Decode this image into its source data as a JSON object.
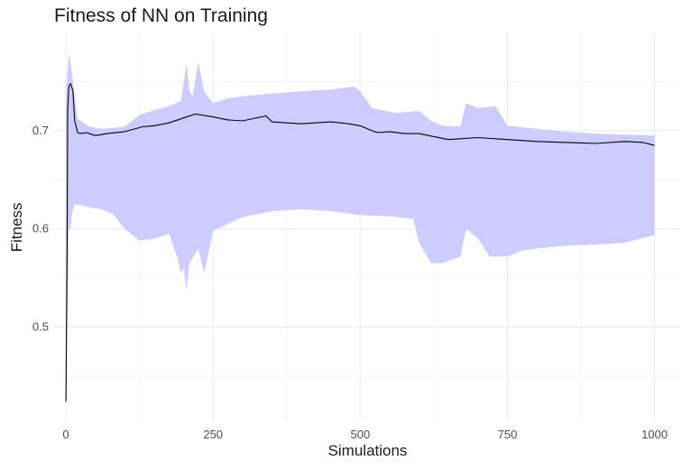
{
  "chart_data": {
    "type": "line",
    "title": "Fitness of NN on Training",
    "xlabel": "Simulations",
    "ylabel": "Fitness",
    "xlim": [
      -20,
      1045
    ],
    "ylim": [
      0.405,
      0.8
    ],
    "x_ticks": [
      0,
      250,
      500,
      750,
      1000
    ],
    "y_ticks": [
      0.5,
      0.6,
      0.7
    ],
    "grid": true,
    "legend": "none",
    "colors": {
      "mean_line": "#000000",
      "band": "#ccccff",
      "grid": "#ebebeb"
    },
    "series": [
      {
        "role": "mean",
        "x": [
          0,
          2,
          3,
          5,
          8,
          12,
          15,
          20,
          25,
          35,
          50,
          70,
          100,
          130,
          150,
          175,
          200,
          220,
          250,
          275,
          300,
          340,
          350,
          375,
          400,
          450,
          480,
          500,
          520,
          530,
          550,
          575,
          600,
          625,
          650,
          700,
          750,
          800,
          850,
          900,
          950,
          980,
          1000
        ],
        "y": [
          0.424,
          0.58,
          0.72,
          0.745,
          0.748,
          0.74,
          0.71,
          0.698,
          0.697,
          0.698,
          0.695,
          0.697,
          0.699,
          0.704,
          0.705,
          0.708,
          0.713,
          0.717,
          0.714,
          0.711,
          0.71,
          0.715,
          0.709,
          0.708,
          0.707,
          0.709,
          0.707,
          0.705,
          0.7,
          0.698,
          0.699,
          0.697,
          0.697,
          0.694,
          0.691,
          0.693,
          0.691,
          0.689,
          0.688,
          0.687,
          0.689,
          0.688,
          0.685
        ]
      },
      {
        "role": "band-upper",
        "x": [
          0,
          5,
          10,
          15,
          20,
          40,
          60,
          80,
          100,
          125,
          150,
          175,
          195,
          205,
          210,
          215,
          225,
          235,
          250,
          275,
          300,
          350,
          400,
          450,
          490,
          500,
          520,
          560,
          600,
          620,
          640,
          670,
          680,
          700,
          730,
          750,
          800,
          850,
          900,
          950,
          1000
        ],
        "y": [
          0.74,
          0.78,
          0.76,
          0.735,
          0.712,
          0.704,
          0.702,
          0.703,
          0.704,
          0.716,
          0.721,
          0.725,
          0.73,
          0.768,
          0.74,
          0.735,
          0.77,
          0.74,
          0.728,
          0.733,
          0.735,
          0.738,
          0.74,
          0.742,
          0.745,
          0.74,
          0.723,
          0.718,
          0.72,
          0.71,
          0.705,
          0.704,
          0.728,
          0.723,
          0.725,
          0.705,
          0.702,
          0.699,
          0.697,
          0.696,
          0.695
        ]
      },
      {
        "role": "band-lower",
        "x": [
          0,
          5,
          8,
          10,
          15,
          20,
          40,
          60,
          80,
          100,
          125,
          150,
          175,
          190,
          195,
          200,
          205,
          210,
          225,
          235,
          250,
          275,
          300,
          350,
          400,
          450,
          500,
          550,
          590,
          600,
          620,
          640,
          670,
          680,
          700,
          720,
          750,
          775,
          800,
          850,
          900,
          950,
          1000
        ],
        "y": [
          0.424,
          0.6,
          0.6,
          0.615,
          0.625,
          0.625,
          0.622,
          0.62,
          0.615,
          0.6,
          0.588,
          0.59,
          0.595,
          0.57,
          0.555,
          0.56,
          0.537,
          0.565,
          0.58,
          0.555,
          0.598,
          0.605,
          0.612,
          0.618,
          0.62,
          0.618,
          0.614,
          0.613,
          0.61,
          0.586,
          0.565,
          0.565,
          0.572,
          0.6,
          0.59,
          0.572,
          0.572,
          0.578,
          0.58,
          0.583,
          0.584,
          0.586,
          0.594
        ]
      }
    ]
  }
}
